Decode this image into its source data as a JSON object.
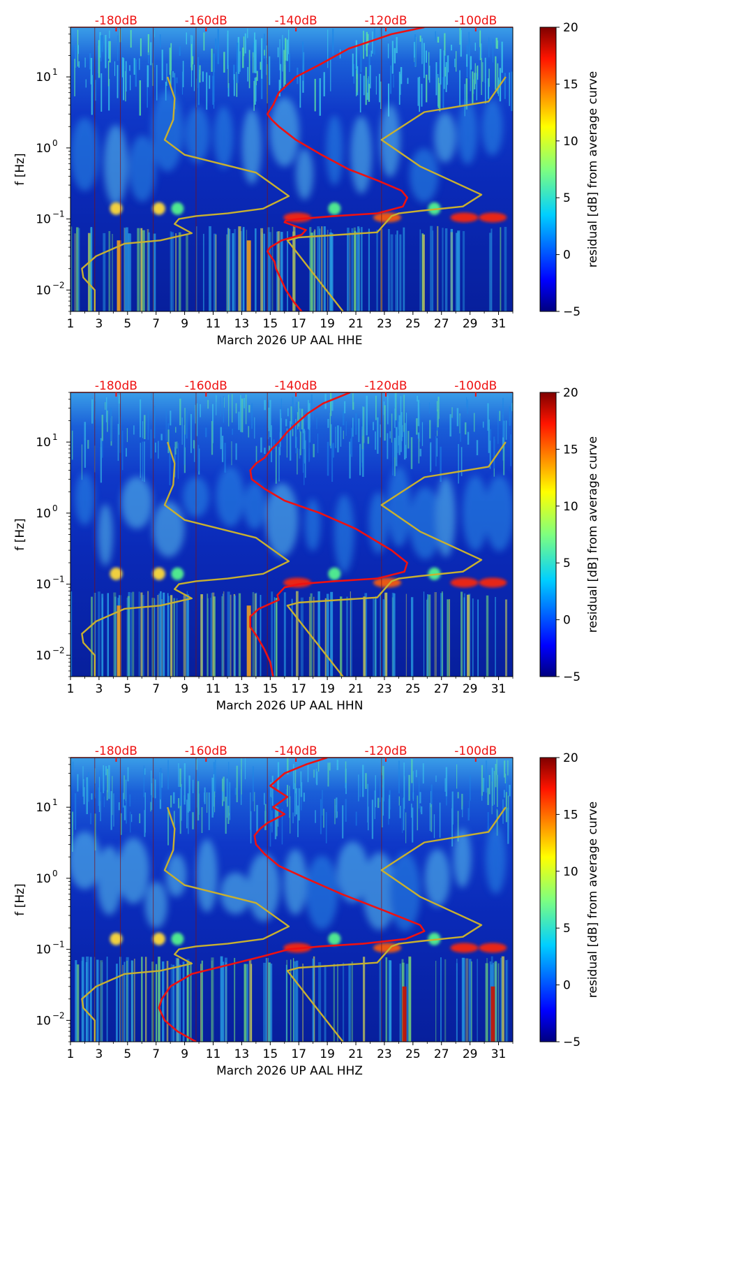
{
  "figure": {
    "x_ticks": [
      "1",
      "3",
      "5",
      "7",
      "9",
      "11",
      "13",
      "15",
      "17",
      "19",
      "21",
      "23",
      "25",
      "27",
      "29",
      "31"
    ],
    "y_ticks": [
      {
        "exp": "1",
        "value": 10
      },
      {
        "exp": "0",
        "value": 1
      },
      {
        "exp": "−1",
        "value": 0.1
      },
      {
        "exp": "−2",
        "value": 0.01
      }
    ],
    "y_label": "f [Hz]",
    "top_ticks": [
      "-180dB",
      "-160dB",
      "-140dB",
      "-120dB",
      "-100dB"
    ],
    "colorbar": {
      "label": "residual [dB] from average curve",
      "ticks": [
        "20",
        "15",
        "10",
        "5",
        "0",
        "−5"
      ]
    },
    "colors": {
      "psd_curve": "#ee1111",
      "noise_model": "#c8b030",
      "top_axis": "#ee1111"
    }
  },
  "chart_data": [
    {
      "type": "heatmap",
      "title": "",
      "xlabel": "March 2026 UP AAL  HHE",
      "ylabel": "f [Hz]",
      "xlim": [
        1,
        32
      ],
      "ylim": [
        0.005,
        50
      ],
      "colorbar_range": [
        -5,
        20
      ],
      "top_axis_ticks": [
        -180,
        -160,
        -140,
        -120,
        -100
      ],
      "psd_curve": {
        "name": "average PSD",
        "x_day": [
          25.8,
          23.5,
          20.5,
          18.5,
          16.8,
          15.6,
          15.2,
          14.8,
          15.1,
          15.6,
          16.8,
          18.6,
          20.5,
          22.5,
          24.2,
          24.6,
          24.3,
          22.5,
          19.5,
          17.0,
          16.1,
          16.0,
          17.5,
          17.2,
          15.8,
          15.0,
          14.8,
          15.3,
          15.4,
          15.7,
          16.1,
          16.6,
          17.2
        ],
        "f_hz": [
          50,
          40,
          25,
          15,
          10,
          6,
          4,
          3,
          2.5,
          2,
          1.3,
          0.8,
          0.5,
          0.35,
          0.25,
          0.2,
          0.15,
          0.12,
          0.11,
          0.1,
          0.095,
          0.09,
          0.07,
          0.06,
          0.05,
          0.04,
          0.035,
          0.025,
          0.02,
          0.015,
          0.01,
          0.007,
          0.005
        ]
      },
      "noise_models": [
        {
          "name": "NLNM",
          "x_day": [
            7.8,
            8.3,
            8.2,
            7.6,
            9.0,
            14.0,
            16.3,
            14.5,
            12.0,
            9.8,
            8.6,
            8.3,
            9.5,
            7.3,
            4.8,
            2.8,
            1.8,
            1.9,
            2.7,
            2.7
          ],
          "f_hz": [
            10,
            5,
            2.5,
            1.3,
            0.8,
            0.45,
            0.21,
            0.14,
            0.12,
            0.11,
            0.1,
            0.085,
            0.063,
            0.05,
            0.045,
            0.03,
            0.02,
            0.015,
            0.01,
            0.005
          ]
        },
        {
          "name": "NHNM",
          "x_day": [
            31.5,
            30.3,
            25.8,
            22.8,
            25.5,
            29.8,
            28.5,
            25.5,
            24.0,
            23.5,
            22.5,
            17.0,
            16.2,
            20.1
          ],
          "f_hz": [
            10,
            4.5,
            3.2,
            1.3,
            0.55,
            0.22,
            0.15,
            0.13,
            0.12,
            0.11,
            0.065,
            0.055,
            0.05,
            0.005
          ]
        }
      ]
    },
    {
      "type": "heatmap",
      "title": "",
      "xlabel": "March 2026 UP AAL  HHN",
      "ylabel": "f [Hz]",
      "xlim": [
        1,
        32
      ],
      "ylim": [
        0.005,
        50
      ],
      "colorbar_range": [
        -5,
        20
      ],
      "top_axis_ticks": [
        -180,
        -160,
        -140,
        -120,
        -100
      ],
      "psd_curve": {
        "name": "average PSD",
        "x_day": [
          20.6,
          18.7,
          17.6,
          16.8,
          16.2,
          15.6,
          15.1,
          14.6,
          14.0,
          13.6,
          13.7,
          14.6,
          16.0,
          18.5,
          21.0,
          23.5,
          24.6,
          24.4,
          22.5,
          19.5,
          17.0,
          16.0,
          15.5,
          15.6,
          14.2,
          13.6,
          13.6,
          14.1,
          14.6,
          15.0,
          15.2
        ],
        "f_hz": [
          50,
          35,
          25,
          18,
          14,
          10,
          8,
          6,
          5,
          4,
          3,
          2.2,
          1.5,
          1.0,
          0.6,
          0.3,
          0.2,
          0.15,
          0.12,
          0.11,
          0.1,
          0.09,
          0.07,
          0.06,
          0.045,
          0.035,
          0.025,
          0.018,
          0.012,
          0.008,
          0.005
        ]
      },
      "noise_models": [
        {
          "name": "NLNM",
          "x_day": [
            7.8,
            8.3,
            8.2,
            7.6,
            9.0,
            14.0,
            16.3,
            14.5,
            12.0,
            9.8,
            8.6,
            8.3,
            9.5,
            7.3,
            4.8,
            2.8,
            1.8,
            1.9,
            2.7,
            2.7
          ],
          "f_hz": [
            10,
            5,
            2.5,
            1.3,
            0.8,
            0.45,
            0.21,
            0.14,
            0.12,
            0.11,
            0.1,
            0.085,
            0.063,
            0.05,
            0.045,
            0.03,
            0.02,
            0.015,
            0.01,
            0.005
          ]
        },
        {
          "name": "NHNM",
          "x_day": [
            31.5,
            30.3,
            25.8,
            22.8,
            25.5,
            29.8,
            28.5,
            25.5,
            24.0,
            23.5,
            22.5,
            17.0,
            16.2,
            20.1
          ],
          "f_hz": [
            10,
            4.5,
            3.2,
            1.3,
            0.55,
            0.22,
            0.15,
            0.13,
            0.12,
            0.11,
            0.065,
            0.055,
            0.05,
            0.005
          ]
        }
      ]
    },
    {
      "type": "heatmap",
      "title": "",
      "xlabel": "March 2026 UP AAL  HHZ",
      "ylabel": "f [Hz]",
      "xlim": [
        1,
        32
      ],
      "ylim": [
        0.005,
        50
      ],
      "colorbar_range": [
        -5,
        20
      ],
      "top_axis_ticks": [
        -180,
        -160,
        -140,
        -120,
        -100
      ],
      "psd_curve": {
        "name": "average PSD",
        "x_day": [
          19.0,
          17.5,
          16.0,
          15.0,
          16.2,
          15.2,
          16.0,
          14.8,
          14.3,
          13.9,
          14.0,
          14.6,
          15.6,
          17.5,
          20.0,
          23.0,
          25.5,
          25.8,
          24.5,
          21.5,
          18.5,
          16.3,
          14.5,
          12.0,
          9.5,
          8.0,
          7.4,
          7.2,
          7.6,
          8.5,
          9.8
        ],
        "f_hz": [
          50,
          40,
          30,
          20,
          14,
          10,
          8,
          6,
          5,
          4,
          3,
          2.2,
          1.5,
          1.0,
          0.6,
          0.35,
          0.22,
          0.18,
          0.14,
          0.12,
          0.11,
          0.1,
          0.08,
          0.06,
          0.045,
          0.03,
          0.02,
          0.015,
          0.01,
          0.007,
          0.005
        ]
      },
      "noise_models": [
        {
          "name": "NLNM",
          "x_day": [
            7.8,
            8.3,
            8.2,
            7.6,
            9.0,
            14.0,
            16.3,
            14.5,
            12.0,
            9.8,
            8.6,
            8.3,
            9.5,
            7.3,
            4.8,
            2.8,
            1.8,
            1.9,
            2.7,
            2.7
          ],
          "f_hz": [
            10,
            5,
            2.5,
            1.3,
            0.8,
            0.45,
            0.21,
            0.14,
            0.12,
            0.11,
            0.1,
            0.085,
            0.063,
            0.05,
            0.045,
            0.03,
            0.02,
            0.015,
            0.01,
            0.005
          ]
        },
        {
          "name": "NHNM",
          "x_day": [
            31.5,
            30.3,
            25.8,
            22.8,
            25.5,
            29.8,
            28.5,
            25.5,
            24.0,
            23.5,
            22.5,
            17.0,
            16.2,
            20.1
          ],
          "f_hz": [
            10,
            4.5,
            3.2,
            1.3,
            0.55,
            0.22,
            0.15,
            0.13,
            0.12,
            0.11,
            0.065,
            0.055,
            0.05,
            0.005
          ]
        }
      ]
    }
  ]
}
